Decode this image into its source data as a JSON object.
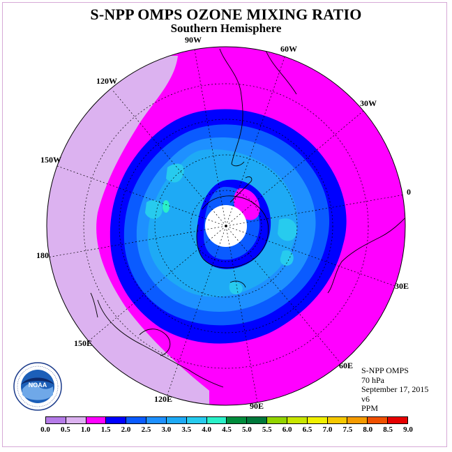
{
  "title": "S-NPP OMPS OZONE MIXING RATIO",
  "subtitle": "Southern Hemisphere",
  "info": {
    "instrument": "S-NPP OMPS",
    "level": "70 hPa",
    "date": "September 17, 2015",
    "version": "v6",
    "units": "PPM"
  },
  "longitude_labels": [
    "90W",
    "60W",
    "30W",
    "0",
    "30E",
    "60E",
    "90E",
    "120E",
    "150E",
    "180",
    "150W",
    "120W"
  ],
  "logo": {
    "text": "NOAA",
    "ring_text": "NATIONAL OCEANIC AND ATMOSPHERIC ADMINISTRATION · U.S. DEPARTMENT OF COMMERCE"
  },
  "legend": {
    "tick_labels": [
      "0.0",
      "0.5",
      "1.0",
      "1.5",
      "2.0",
      "2.5",
      "3.0",
      "3.5",
      "4.0",
      "4.5",
      "5.0",
      "5.5",
      "6.0",
      "6.5",
      "7.0",
      "7.5",
      "8.0",
      "8.5",
      "9.0"
    ],
    "colors": [
      "#b57be8",
      "#dcb2f0",
      "#ff00ff",
      "#0000ff",
      "#0a5bff",
      "#1e90ff",
      "#1eaaf5",
      "#27cbee",
      "#2af0c8",
      "#008c3c",
      "#00783a",
      "#92d400",
      "#c8e600",
      "#f0f000",
      "#f5c800",
      "#f59b00",
      "#f05000",
      "#e60000",
      "#8b5a2b"
    ]
  },
  "map_colors": {
    "lavender": "#dcb2f0",
    "magenta": "#ff00ff",
    "deep_blue": "#0000ff",
    "blue": "#0a5bff",
    "azure": "#1e90ff",
    "sky": "#1eaaf5",
    "cyan": "#27cbee",
    "aqua": "#2af0c8"
  }
}
